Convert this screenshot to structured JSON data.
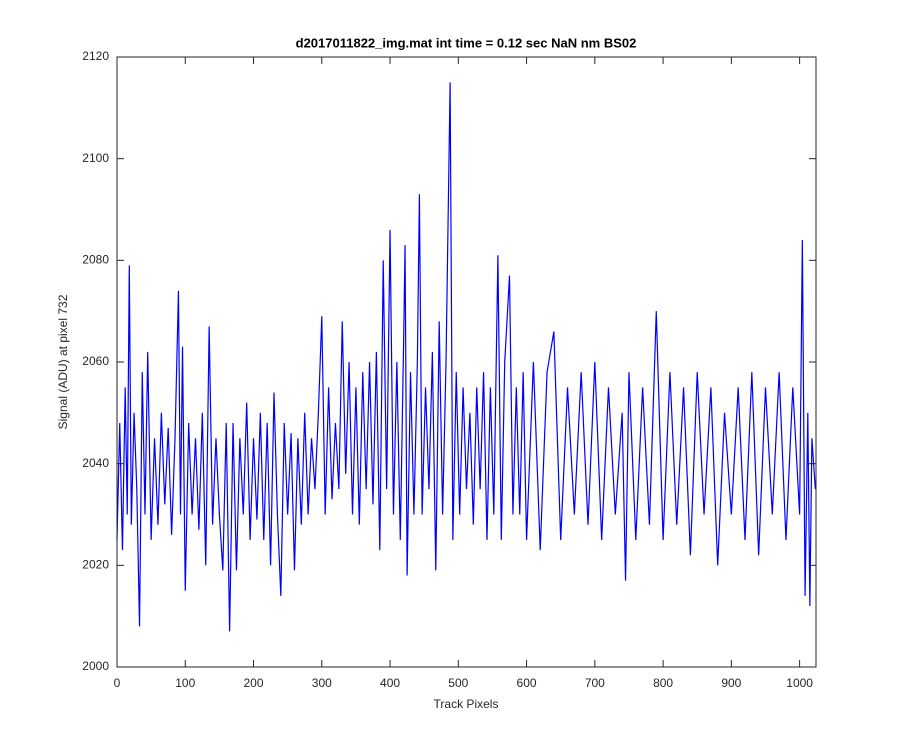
{
  "chart_data": {
    "type": "line",
    "title": "d2017011822_img.mat int time = 0.12 sec  NaN nm BS02",
    "x_label": "Track Pixels",
    "y_label": "Signal (ADU) at pixel 732",
    "xlim": [
      0,
      1024
    ],
    "ylim": [
      2000,
      2120
    ],
    "xticks": [
      0,
      100,
      200,
      300,
      400,
      500,
      600,
      700,
      800,
      900,
      1000
    ],
    "yticks": [
      2000,
      2020,
      2040,
      2060,
      2080,
      2100,
      2120
    ],
    "grid": false,
    "series": [
      {
        "color": "#0000ff",
        "x": [
          0,
          4,
          8,
          12,
          15,
          18,
          21,
          25,
          29,
          33,
          37,
          41,
          45,
          50,
          55,
          60,
          65,
          70,
          75,
          80,
          85,
          90,
          93,
          96,
          100,
          105,
          110,
          115,
          120,
          125,
          130,
          135,
          140,
          145,
          150,
          155,
          160,
          165,
          170,
          175,
          180,
          185,
          190,
          195,
          200,
          205,
          210,
          215,
          220,
          225,
          230,
          235,
          240,
          245,
          250,
          255,
          260,
          265,
          270,
          275,
          280,
          285,
          290,
          295,
          300,
          305,
          310,
          315,
          320,
          325,
          330,
          335,
          340,
          345,
          350,
          355,
          360,
          365,
          370,
          375,
          380,
          385,
          390,
          395,
          400,
          405,
          410,
          415,
          420,
          422,
          425,
          430,
          435,
          440,
          443,
          447,
          452,
          457,
          462,
          467,
          472,
          477,
          482,
          488,
          492,
          497,
          502,
          507,
          512,
          517,
          522,
          527,
          532,
          537,
          542,
          547,
          552,
          558,
          563,
          568,
          575,
          580,
          585,
          590,
          595,
          600,
          610,
          620,
          630,
          640,
          650,
          660,
          670,
          680,
          690,
          700,
          710,
          720,
          730,
          740,
          745,
          750,
          760,
          770,
          780,
          790,
          800,
          810,
          820,
          830,
          840,
          850,
          860,
          870,
          880,
          890,
          900,
          910,
          920,
          930,
          940,
          950,
          960,
          970,
          980,
          990,
          1000,
          1004,
          1008,
          1012,
          1015,
          1018,
          1023
        ],
        "values": [
          2025,
          2048,
          2023,
          2055,
          2030,
          2079,
          2028,
          2050,
          2035,
          2008,
          2058,
          2030,
          2062,
          2025,
          2045,
          2028,
          2050,
          2032,
          2047,
          2026,
          2045,
          2074,
          2030,
          2063,
          2015,
          2048,
          2030,
          2045,
          2027,
          2050,
          2020,
          2067,
          2028,
          2045,
          2030,
          2019,
          2048,
          2007,
          2048,
          2019,
          2045,
          2030,
          2052,
          2025,
          2045,
          2029,
          2050,
          2025,
          2048,
          2020,
          2054,
          2030,
          2014,
          2048,
          2030,
          2046,
          2019,
          2045,
          2028,
          2050,
          2030,
          2045,
          2035,
          2050,
          2069,
          2030,
          2055,
          2033,
          2048,
          2035,
          2068,
          2038,
          2060,
          2030,
          2055,
          2028,
          2058,
          2035,
          2060,
          2032,
          2062,
          2023,
          2080,
          2035,
          2086,
          2030,
          2060,
          2025,
          2065,
          2083,
          2018,
          2058,
          2030,
          2060,
          2093,
          2030,
          2055,
          2035,
          2062,
          2019,
          2068,
          2030,
          2060,
          2115,
          2025,
          2058,
          2030,
          2055,
          2035,
          2050,
          2028,
          2055,
          2035,
          2058,
          2025,
          2055,
          2030,
          2081,
          2025,
          2060,
          2077,
          2030,
          2055,
          2030,
          2058,
          2025,
          2060,
          2023,
          2058,
          2066,
          2025,
          2055,
          2030,
          2058,
          2028,
          2060,
          2025,
          2055,
          2030,
          2050,
          2017,
          2058,
          2025,
          2055,
          2028,
          2070,
          2025,
          2058,
          2028,
          2055,
          2022,
          2058,
          2030,
          2055,
          2020,
          2050,
          2030,
          2055,
          2025,
          2058,
          2022,
          2055,
          2030,
          2058,
          2025,
          2055,
          2030,
          2084,
          2014,
          2050,
          2012,
          2045,
          2035
        ]
      }
    ]
  }
}
